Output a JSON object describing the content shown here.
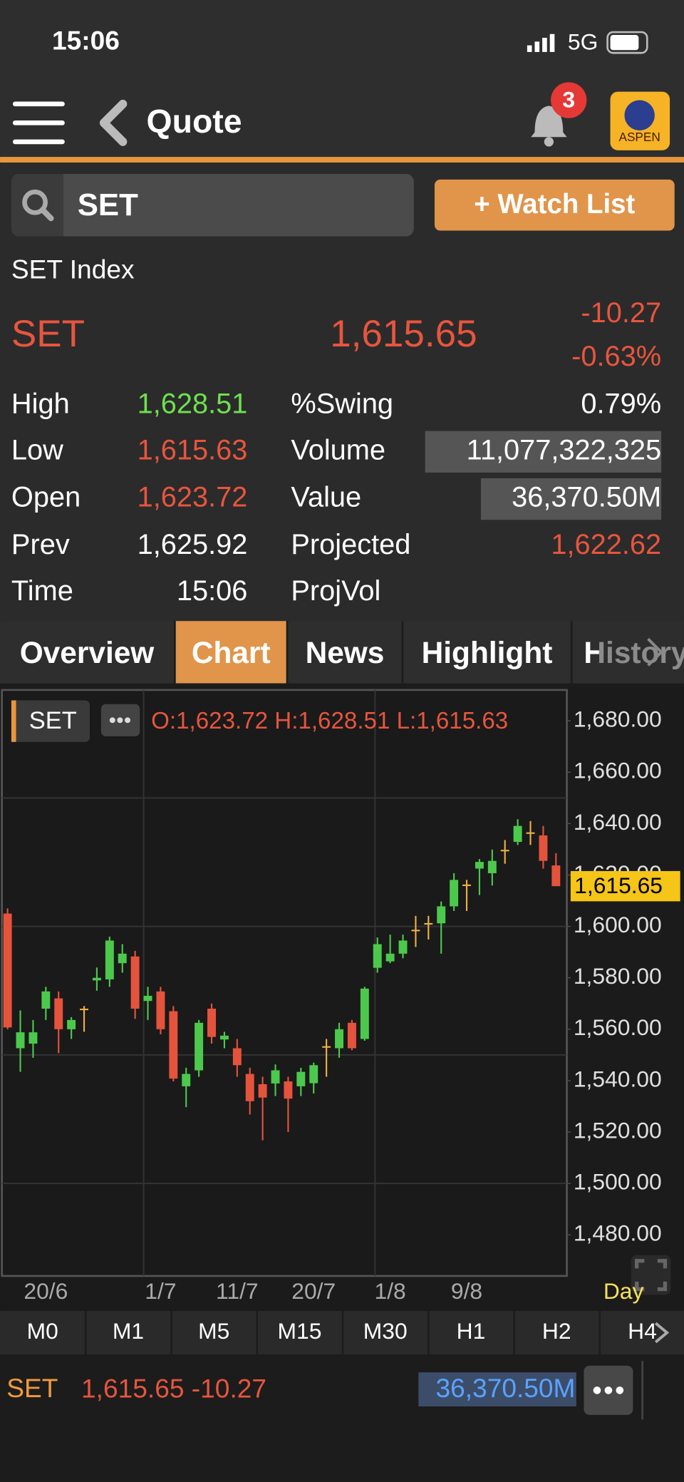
{
  "status_bar": {
    "time": "15:06",
    "network": "5G"
  },
  "header": {
    "title": "Quote",
    "notifications": "3",
    "logo": "ASPEN"
  },
  "search": {
    "query": "SET",
    "button": "+ Watch List"
  },
  "quote": {
    "name": "SET Index",
    "symbol": "SET",
    "price": "1,615.65",
    "change": "-10.27",
    "change_pct": "-0.63%",
    "stats_left": [
      {
        "label": "High",
        "value": "1,628.51"
      },
      {
        "label": "Low",
        "value": "1,615.63"
      },
      {
        "label": "Open",
        "value": "1,623.72"
      },
      {
        "label": "Prev",
        "value": "1,625.92"
      },
      {
        "label": "Time",
        "value": "15:06"
      }
    ],
    "stats_right": [
      {
        "label": "%Swing",
        "value": "0.79%"
      },
      {
        "label": "Volume",
        "value": "11,077,322,325"
      },
      {
        "label": "Value",
        "value": "36,370.50M"
      },
      {
        "label": "Projected",
        "value": "1,622.62"
      },
      {
        "label": "ProjVol"
      }
    ]
  },
  "tabs": [
    "Overview",
    "Chart",
    "News",
    "Highlight",
    "History"
  ],
  "active_tab": 1,
  "chart_data": {
    "type": "candlestick",
    "symbol": "SET",
    "ohlc_header": [
      "O:1,623.72",
      "H:1,628.51",
      "L:1,615.63"
    ],
    "period": "Day",
    "categories": [
      null,
      null,
      null,
      "20/6",
      null,
      null,
      null,
      null,
      null,
      null,
      null,
      null,
      "1/7",
      null,
      null,
      null,
      null,
      null,
      "11/7",
      null,
      null,
      null,
      null,
      null,
      "20/7",
      null,
      null,
      null,
      null,
      null,
      "1/8",
      null,
      null,
      null,
      null,
      null,
      "9/8",
      null,
      null,
      null,
      null,
      null,
      null,
      null
    ],
    "open": [
      1605,
      1552.6,
      1554.4,
      1568,
      1572,
      1560,
      1568,
      1579,
      1579.4,
      1585.7,
      1588.3,
      1571,
      1574.7,
      1567,
      1537.8,
      1544,
      1568,
      1556,
      1552.6,
      1542.6,
      1538.6,
      1538.9,
      1539.7,
      1537.8,
      1539,
      1553.4,
      1552.6,
      1562.5,
      1556.2,
      1583.9,
      1586.4,
      1589.4,
      1598.7,
      1601.3,
      1601.2,
      1607.8,
      1616.3,
      1622.5,
      1620.7,
      1629.8,
      1632.9,
      1636.6,
      1635.4,
      1623.72
    ],
    "high": [
      1607,
      1567.3,
      1563.6,
      1576.5,
      1574.7,
      1564.7,
      1569,
      1584,
      1596,
      1593.1,
      1590.5,
      1576.5,
      1576.5,
      1569,
      1545,
      1563.6,
      1570,
      1559,
      1556.2,
      1545,
      1541.5,
      1546.3,
      1541.5,
      1545,
      1547,
      1556.2,
      1562.5,
      1563.6,
      1576.5,
      1595.7,
      1596.8,
      1596.8,
      1604.1,
      1604.1,
      1609.7,
      1620.7,
      1618.1,
      1626.2,
      1629.9,
      1633.6,
      1641.7,
      1641,
      1639.1,
      1628.51
    ],
    "low": [
      1560,
      1543.4,
      1548.9,
      1563.6,
      1550.7,
      1556.2,
      1559,
      1575,
      1576.5,
      1582,
      1564,
      1563.6,
      1558,
      1539.7,
      1529.7,
      1541.5,
      1554.4,
      1552.6,
      1541.5,
      1526.8,
      1516.8,
      1534,
      1520,
      1534,
      1535,
      1541.5,
      1548.9,
      1551.8,
      1555.5,
      1582,
      1585.7,
      1587.6,
      1592,
      1594.9,
      1589.4,
      1606,
      1606,
      1612.2,
      1615.9,
      1624.4,
      1631.7,
      1631.7,
      1622.5,
      1615.63
    ],
    "close": [
      1560.7,
      1558.8,
      1558.8,
      1574.7,
      1560,
      1563.6,
      1568,
      1580,
      1594.5,
      1589.4,
      1568,
      1573,
      1560,
      1540.8,
      1542.6,
      1562.5,
      1557,
      1557.5,
      1546,
      1532,
      1533.4,
      1544,
      1533,
      1543.4,
      1546,
      1553.4,
      1560,
      1552.6,
      1575.8,
      1593.1,
      1589.4,
      1594.5,
      1598.7,
      1601.3,
      1607.8,
      1618.1,
      1616.3,
      1625.1,
      1625.5,
      1629.8,
      1639.1,
      1636.6,
      1625.5,
      1615.65
    ],
    "colors": {
      "up": "#4cc94c",
      "down": "#e5533d",
      "flat": "#f0b040"
    },
    "ylim": [
      1464,
      1692
    ],
    "yticks": [
      {
        "value": 1480,
        "label": "1,480.00"
      },
      {
        "value": 1500,
        "label": "1,500.00"
      },
      {
        "value": 1520,
        "label": "1,520.00"
      },
      {
        "value": 1540,
        "label": "1,540.00"
      },
      {
        "value": 1560,
        "label": "1,560.00"
      },
      {
        "value": 1580,
        "label": "1,580.00"
      },
      {
        "value": 1600,
        "label": "1,600.00"
      },
      {
        "value": 1620,
        "label": "1,620.00"
      },
      {
        "value": 1640,
        "label": "1,640.00"
      },
      {
        "value": 1660,
        "label": "1,660.00"
      },
      {
        "value": 1680,
        "label": "1,680.00"
      }
    ],
    "ygrid": [
      1500,
      1550,
      1600,
      1650
    ],
    "last_price": {
      "value": 1615.65,
      "label": "1,615.65"
    }
  },
  "intervals": [
    "M0",
    "M1",
    "M5",
    "M15",
    "M30",
    "H1",
    "H2",
    "H4"
  ],
  "footer": {
    "symbol": "SET",
    "price": "1,615.65",
    "change": "-10.27",
    "value": "36,370.50M"
  }
}
